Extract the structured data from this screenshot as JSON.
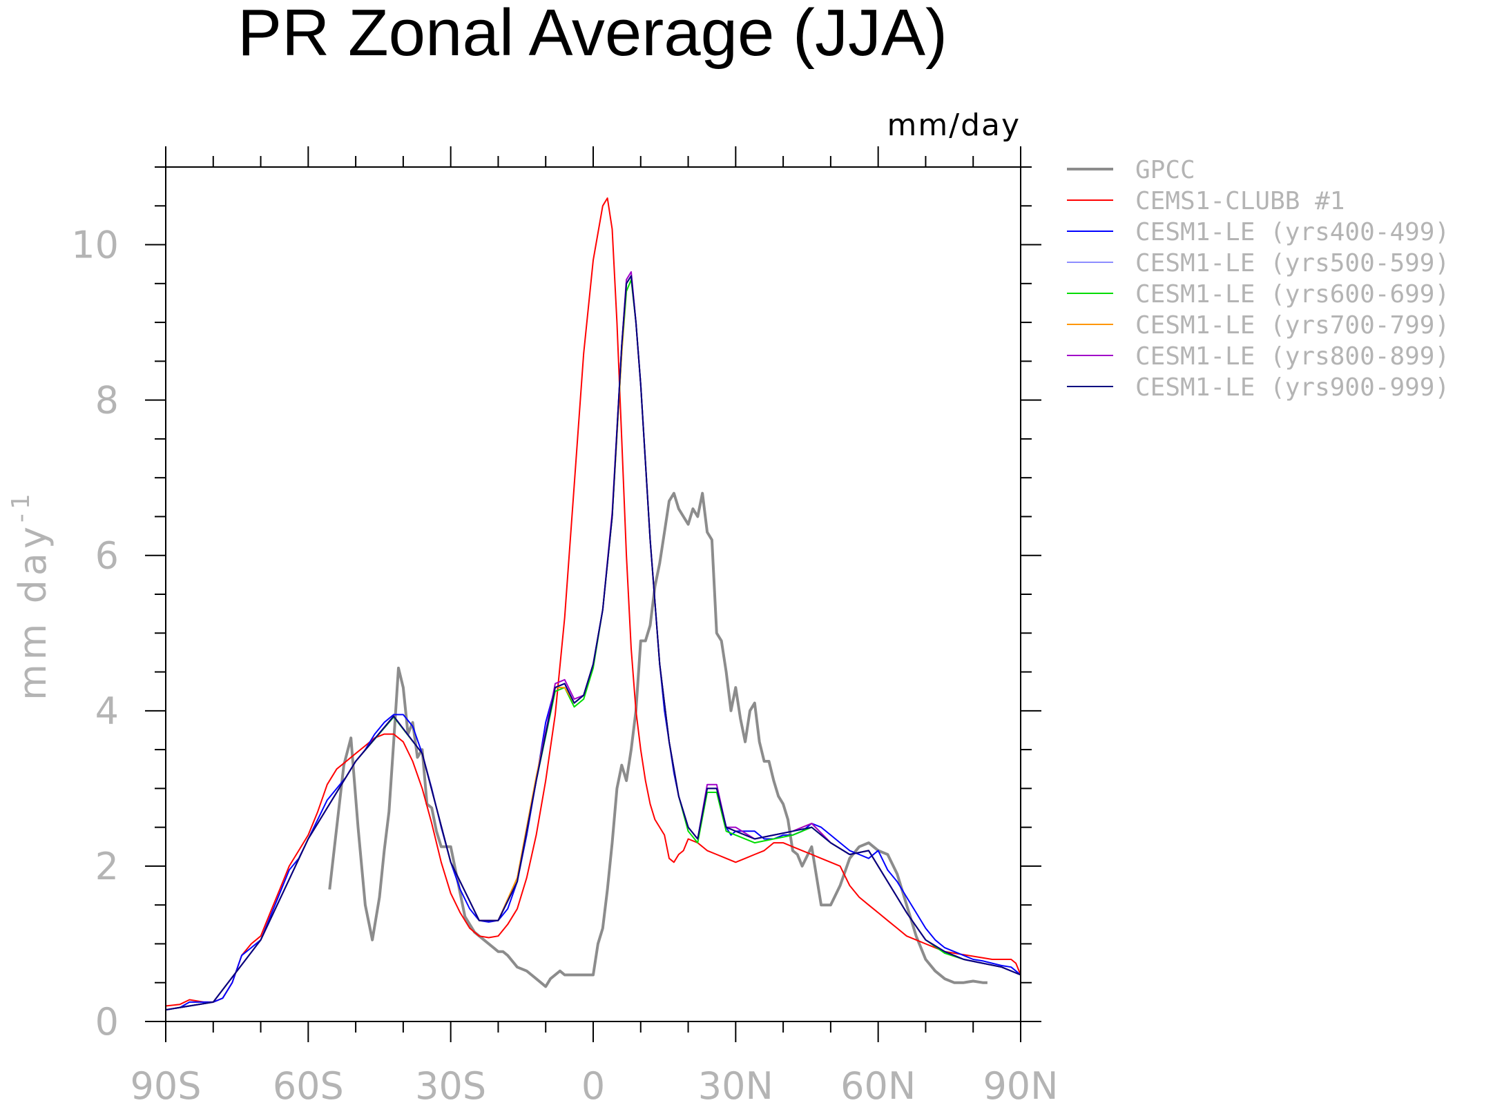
{
  "chart_data": {
    "type": "line",
    "title": "PR Zonal Average (JJA)",
    "units_label": "mm/day",
    "ylabel": "mm day",
    "ylabel_superscript": "-1",
    "xlim": [
      -90,
      90
    ],
    "ylim": [
      0,
      11
    ],
    "x_ticks": [
      {
        "value": -90,
        "label": "90S"
      },
      {
        "value": -60,
        "label": "60S"
      },
      {
        "value": -30,
        "label": "30S"
      },
      {
        "value": 0,
        "label": "0"
      },
      {
        "value": 30,
        "label": "30N"
      },
      {
        "value": 60,
        "label": "60N"
      },
      {
        "value": 90,
        "label": "90N"
      }
    ],
    "y_ticks": [
      {
        "value": 0,
        "label": "0"
      },
      {
        "value": 2,
        "label": "2"
      },
      {
        "value": 4,
        "label": "4"
      },
      {
        "value": 6,
        "label": "6"
      },
      {
        "value": 8,
        "label": "8"
      },
      {
        "value": 10,
        "label": "10"
      }
    ],
    "legend_position": "right",
    "series": [
      {
        "name": "GPCC",
        "color": "#8c8c8c",
        "x": [
          -55.5,
          -52.5,
          -51,
          -49.5,
          -48,
          -46.5,
          -45,
          -44,
          -43,
          -42,
          -41,
          -40,
          -39,
          -38,
          -37,
          -36,
          -35,
          -34,
          -33,
          -32,
          -30,
          -27,
          -25,
          -23,
          -21,
          -20,
          -19,
          -18,
          -16,
          -14,
          -12,
          -11,
          -10,
          -9,
          -7,
          -6,
          -5,
          -4,
          -3,
          -2,
          -1,
          0,
          1,
          2,
          3,
          4,
          5,
          6,
          7,
          8,
          9,
          10,
          11,
          12,
          13,
          14,
          15,
          16,
          17,
          18,
          19,
          20,
          21,
          22,
          23,
          24,
          25,
          26,
          27,
          28,
          29,
          30,
          31,
          32,
          33,
          34,
          35,
          36,
          37,
          38,
          39,
          40,
          41,
          42,
          43,
          44,
          46,
          48,
          50,
          52,
          54,
          56,
          58,
          60,
          62,
          64,
          66,
          68,
          70,
          72,
          74,
          76,
          78,
          80,
          82,
          83
        ],
        "y": [
          1.7,
          3.3,
          3.65,
          2.5,
          1.5,
          1.05,
          1.6,
          2.2,
          2.7,
          3.6,
          4.55,
          4.3,
          3.7,
          3.85,
          3.4,
          3.5,
          2.8,
          2.75,
          2.45,
          2.25,
          2.25,
          1.35,
          1.15,
          1.05,
          0.95,
          0.9,
          0.9,
          0.85,
          0.7,
          0.65,
          0.55,
          0.5,
          0.45,
          0.55,
          0.65,
          0.6,
          0.6,
          0.6,
          0.6,
          0.6,
          0.6,
          0.6,
          1.0,
          1.2,
          1.7,
          2.3,
          3.0,
          3.3,
          3.1,
          3.5,
          4.0,
          4.9,
          4.9,
          5.1,
          5.6,
          5.9,
          6.3,
          6.7,
          6.8,
          6.6,
          6.5,
          6.4,
          6.6,
          6.5,
          6.8,
          6.3,
          6.2,
          5.0,
          4.9,
          4.5,
          4.0,
          4.3,
          3.9,
          3.6,
          4.0,
          4.1,
          3.6,
          3.35,
          3.35,
          3.1,
          2.9,
          2.8,
          2.6,
          2.2,
          2.15,
          2.0,
          2.25,
          1.5,
          1.5,
          1.75,
          2.1,
          2.25,
          2.3,
          2.2,
          2.15,
          1.9,
          1.5,
          1.1,
          0.8,
          0.65,
          0.55,
          0.5,
          0.5,
          0.52,
          0.5,
          0.5
        ]
      },
      {
        "name": "CEMS1-CLUBB      #1",
        "color": "#ff0000",
        "x": [
          -90,
          -87,
          -85,
          -82,
          -80,
          -78,
          -76,
          -74,
          -72,
          -70,
          -68,
          -66,
          -64,
          -62,
          -60,
          -58,
          -56,
          -54,
          -52,
          -50,
          -48,
          -46,
          -44,
          -42,
          -40,
          -38,
          -36,
          -34,
          -32,
          -30,
          -28,
          -26,
          -24,
          -22,
          -20,
          -18,
          -16,
          -14,
          -12,
          -10,
          -8,
          -6,
          -4,
          -2,
          0,
          2,
          3,
          4,
          5,
          6,
          7,
          8,
          9,
          10,
          11,
          12,
          13,
          14,
          15,
          16,
          17,
          18,
          19,
          20,
          22,
          24,
          26,
          28,
          30,
          32,
          34,
          36,
          38,
          40,
          42,
          44,
          46,
          48,
          50,
          52,
          54,
          56,
          58,
          60,
          62,
          64,
          66,
          68,
          70,
          72,
          74,
          76,
          78,
          80,
          82,
          84,
          86,
          88,
          89,
          90
        ],
        "y": [
          0.2,
          0.22,
          0.28,
          0.25,
          0.25,
          0.3,
          0.5,
          0.85,
          1.0,
          1.1,
          1.4,
          1.7,
          2.0,
          2.2,
          2.4,
          2.7,
          3.05,
          3.25,
          3.35,
          3.45,
          3.55,
          3.65,
          3.7,
          3.7,
          3.6,
          3.35,
          3.0,
          2.55,
          2.05,
          1.65,
          1.4,
          1.2,
          1.1,
          1.08,
          1.1,
          1.25,
          1.45,
          1.85,
          2.4,
          3.1,
          3.95,
          5.2,
          6.9,
          8.6,
          9.8,
          10.5,
          10.6,
          10.2,
          9.0,
          7.5,
          6.0,
          4.8,
          4.0,
          3.5,
          3.1,
          2.8,
          2.6,
          2.5,
          2.4,
          2.1,
          2.05,
          2.15,
          2.2,
          2.35,
          2.3,
          2.2,
          2.15,
          2.1,
          2.05,
          2.1,
          2.15,
          2.2,
          2.3,
          2.3,
          2.25,
          2.2,
          2.15,
          2.1,
          2.05,
          2.0,
          1.75,
          1.6,
          1.5,
          1.4,
          1.3,
          1.2,
          1.1,
          1.05,
          1.0,
          0.95,
          0.9,
          0.88,
          0.86,
          0.84,
          0.82,
          0.8,
          0.8,
          0.8,
          0.75,
          0.6
        ]
      },
      {
        "name": "CESM1-LE (yrs400-499)",
        "color": "#0000ff",
        "x": [
          -90,
          -87,
          -85,
          -82,
          -80,
          -78,
          -76,
          -74,
          -72,
          -70,
          -68,
          -66,
          -64,
          -62,
          -60,
          -58,
          -56,
          -54,
          -52,
          -50,
          -48,
          -46,
          -44,
          -42,
          -40,
          -38,
          -36,
          -34,
          -32,
          -30,
          -28,
          -26,
          -24,
          -22,
          -20,
          -18,
          -16,
          -14,
          -12,
          -10,
          -8,
          -6,
          -4,
          -2,
          0,
          2,
          4,
          5,
          6,
          7,
          8,
          9,
          10,
          11,
          12,
          13,
          14,
          15,
          16,
          17,
          18,
          20,
          22,
          24,
          26,
          28,
          29,
          30,
          32,
          34,
          36,
          38,
          40,
          42,
          44,
          46,
          48,
          50,
          52,
          54,
          56,
          58,
          60,
          62,
          64,
          66,
          68,
          70,
          72,
          74,
          76,
          78,
          80,
          82,
          84,
          86,
          88,
          89,
          90
        ],
        "y": [
          0.15,
          0.18,
          0.25,
          0.25,
          0.25,
          0.3,
          0.5,
          0.85,
          0.95,
          1.05,
          1.35,
          1.65,
          1.95,
          2.1,
          2.35,
          2.6,
          2.85,
          3.0,
          3.15,
          3.35,
          3.5,
          3.7,
          3.85,
          3.95,
          3.95,
          3.8,
          3.45,
          3.0,
          2.5,
          2.05,
          1.7,
          1.45,
          1.3,
          1.28,
          1.3,
          1.45,
          1.8,
          2.4,
          3.1,
          3.85,
          4.3,
          4.35,
          4.1,
          4.2,
          4.6,
          5.3,
          6.5,
          7.6,
          8.7,
          9.5,
          9.6,
          9.0,
          8.2,
          7.2,
          6.2,
          5.4,
          4.6,
          4.0,
          3.6,
          3.2,
          2.9,
          2.5,
          2.35,
          3.0,
          3.0,
          2.5,
          2.4,
          2.45,
          2.45,
          2.45,
          2.35,
          2.35,
          2.4,
          2.4,
          2.45,
          2.55,
          2.5,
          2.4,
          2.3,
          2.2,
          2.15,
          2.1,
          2.2,
          1.95,
          1.8,
          1.6,
          1.4,
          1.2,
          1.05,
          0.95,
          0.9,
          0.85,
          0.8,
          0.78,
          0.75,
          0.72,
          0.7,
          0.65,
          0.6
        ]
      },
      {
        "name": "CESM1-LE (yrs500-599)",
        "color": "#8c8cff",
        "x": [
          -90,
          -80,
          -70,
          -60,
          -50,
          -42,
          -36,
          -30,
          -24,
          -20,
          -16,
          -12,
          -8,
          -6,
          -4,
          -2,
          0,
          2,
          4,
          6,
          7,
          8,
          9,
          10,
          12,
          14,
          16,
          18,
          20,
          22,
          24,
          26,
          28,
          30,
          34,
          38,
          42,
          46,
          50,
          54,
          58,
          62,
          66,
          70,
          74,
          78,
          82,
          86,
          90
        ],
        "y": [
          0.15,
          0.25,
          1.05,
          2.35,
          3.35,
          3.93,
          3.45,
          2.05,
          1.3,
          1.3,
          1.8,
          3.1,
          4.3,
          4.35,
          4.1,
          4.2,
          4.6,
          5.3,
          6.5,
          8.7,
          9.5,
          9.6,
          9.0,
          8.2,
          6.2,
          4.6,
          3.6,
          2.9,
          2.5,
          2.35,
          3.0,
          3.0,
          2.5,
          2.45,
          2.35,
          2.4,
          2.45,
          2.5,
          2.3,
          2.15,
          2.2,
          1.8,
          1.4,
          1.05,
          0.9,
          0.8,
          0.75,
          0.7,
          0.6
        ]
      },
      {
        "name": "CESM1-LE (yrs600-699)",
        "color": "#00dc00",
        "x": [
          -90,
          -80,
          -70,
          -60,
          -50,
          -42,
          -36,
          -30,
          -24,
          -20,
          -16,
          -12,
          -8,
          -6,
          -4,
          -2,
          0,
          2,
          4,
          6,
          7,
          8,
          9,
          10,
          12,
          14,
          16,
          18,
          20,
          22,
          24,
          26,
          28,
          30,
          34,
          38,
          42,
          46,
          50,
          54,
          58,
          62,
          66,
          70,
          74,
          78,
          82,
          86,
          90
        ],
        "y": [
          0.15,
          0.25,
          1.05,
          2.35,
          3.35,
          3.92,
          3.45,
          2.05,
          1.3,
          1.3,
          1.8,
          3.1,
          4.25,
          4.3,
          4.05,
          4.15,
          4.55,
          5.3,
          6.5,
          8.6,
          9.4,
          9.55,
          9.0,
          8.2,
          6.2,
          4.6,
          3.6,
          2.9,
          2.45,
          2.3,
          2.95,
          2.95,
          2.45,
          2.4,
          2.3,
          2.35,
          2.4,
          2.5,
          2.3,
          2.15,
          2.2,
          1.8,
          1.4,
          1.05,
          0.88,
          0.8,
          0.75,
          0.7,
          0.6
        ]
      },
      {
        "name": "CESM1-LE (yrs700-799)",
        "color": "#ff9600",
        "x": [
          -90,
          -80,
          -70,
          -60,
          -50,
          -42,
          -36,
          -30,
          -24,
          -20,
          -16,
          -12,
          -8,
          -6,
          -4,
          -2,
          0,
          2,
          4,
          6,
          7,
          8,
          9,
          10,
          12,
          14,
          16,
          18,
          20,
          22,
          24,
          26,
          28,
          30,
          34,
          38,
          42,
          46,
          50,
          54,
          58,
          62,
          66,
          70,
          74,
          78,
          82,
          86,
          90
        ],
        "y": [
          0.15,
          0.25,
          1.05,
          2.35,
          3.35,
          3.93,
          3.45,
          2.05,
          1.3,
          1.3,
          1.85,
          3.15,
          4.3,
          4.3,
          4.1,
          4.2,
          4.6,
          5.3,
          6.5,
          8.6,
          9.5,
          9.6,
          9.0,
          8.2,
          6.2,
          4.6,
          3.6,
          2.9,
          2.5,
          2.35,
          3.0,
          3.0,
          2.5,
          2.45,
          2.35,
          2.4,
          2.45,
          2.55,
          2.3,
          2.15,
          2.2,
          1.8,
          1.4,
          1.05,
          0.9,
          0.8,
          0.75,
          0.7,
          0.6
        ]
      },
      {
        "name": "CESM1-LE (yrs800-899)",
        "color": "#a000c8",
        "x": [
          -90,
          -80,
          -70,
          -60,
          -50,
          -42,
          -36,
          -30,
          -24,
          -20,
          -16,
          -12,
          -8,
          -6,
          -4,
          -2,
          0,
          2,
          4,
          6,
          7,
          8,
          9,
          10,
          12,
          14,
          16,
          18,
          20,
          22,
          24,
          26,
          28,
          30,
          34,
          38,
          42,
          46,
          50,
          54,
          58,
          62,
          66,
          70,
          74,
          78,
          82,
          86,
          90
        ],
        "y": [
          0.15,
          0.25,
          1.05,
          2.35,
          3.35,
          3.93,
          3.45,
          2.05,
          1.3,
          1.3,
          1.8,
          3.1,
          4.35,
          4.4,
          4.15,
          4.2,
          4.6,
          5.3,
          6.55,
          8.7,
          9.55,
          9.65,
          9.0,
          8.2,
          6.2,
          4.6,
          3.6,
          2.9,
          2.5,
          2.35,
          3.05,
          3.05,
          2.5,
          2.5,
          2.35,
          2.4,
          2.45,
          2.55,
          2.3,
          2.15,
          2.2,
          1.8,
          1.4,
          1.05,
          0.9,
          0.8,
          0.75,
          0.7,
          0.6
        ]
      },
      {
        "name": "CESM1-LE (yrs900-999)",
        "color": "#000080",
        "x": [
          -90,
          -80,
          -70,
          -60,
          -50,
          -42,
          -36,
          -30,
          -24,
          -20,
          -16,
          -12,
          -8,
          -6,
          -4,
          -2,
          0,
          2,
          4,
          6,
          7,
          8,
          9,
          10,
          12,
          14,
          16,
          18,
          20,
          22,
          24,
          26,
          28,
          30,
          34,
          38,
          42,
          46,
          50,
          54,
          58,
          62,
          66,
          70,
          74,
          78,
          82,
          86,
          90
        ],
        "y": [
          0.15,
          0.25,
          1.05,
          2.35,
          3.35,
          3.93,
          3.45,
          2.05,
          1.3,
          1.3,
          1.8,
          3.1,
          4.3,
          4.35,
          4.1,
          4.2,
          4.6,
          5.3,
          6.5,
          8.7,
          9.5,
          9.6,
          9.0,
          8.2,
          6.2,
          4.6,
          3.6,
          2.9,
          2.5,
          2.35,
          3.0,
          3.0,
          2.5,
          2.45,
          2.35,
          2.4,
          2.45,
          2.5,
          2.3,
          2.15,
          2.2,
          1.8,
          1.4,
          1.05,
          0.9,
          0.8,
          0.75,
          0.7,
          0.6
        ]
      }
    ]
  }
}
